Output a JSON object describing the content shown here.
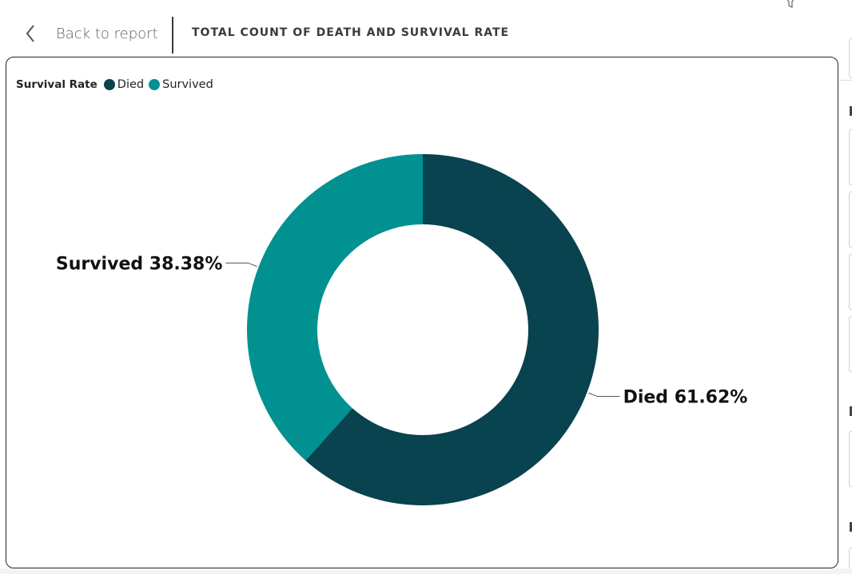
{
  "toolbar": {
    "back_label": "Back to report",
    "visual_title": "TOTAL COUNT OF DEATH AND SURVIVAL RATE",
    "back_icon": "chevron-left-icon",
    "filter_icon": "filter-icon",
    "more_icon": "more-options-icon"
  },
  "legend": {
    "title": "Survival Rate",
    "items": [
      {
        "label": "Died",
        "color": "#08434F"
      },
      {
        "label": "Survived",
        "color": "#009190"
      }
    ]
  },
  "chart_data": {
    "type": "pie",
    "subtype": "donut",
    "title": "TOTAL COUNT OF DEATH AND SURVIVAL RATE",
    "legend_title": "Survival Rate",
    "legend_position": "top-left",
    "slices": [
      {
        "label": "Died",
        "percent": 61.62,
        "color": "#08434F",
        "data_label": "Died 61.62%"
      },
      {
        "label": "Survived",
        "percent": 38.38,
        "color": "#009190",
        "data_label": "Survived 38.38%"
      }
    ]
  }
}
